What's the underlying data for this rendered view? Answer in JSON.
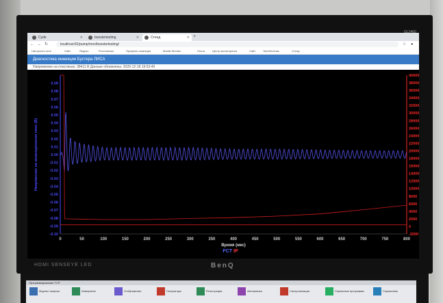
{
  "browser": {
    "tabs": [
      {
        "label": "Cyde",
        "active": false
      },
      {
        "label": "boostertesting",
        "active": false
      },
      {
        "label": "Стенд",
        "active": true
      }
    ],
    "url": "localhost:81/pump/mon/boostertesting/",
    "bookmarks": [
      "Настроить сети",
      "Сайт",
      "Яндекс",
      "Ростелеком",
      "Профиль инжекции",
      "Mobile Monitor",
      "Почта",
      "Центр мониторинга",
      "Сайт",
      "ЭлитМонтаж",
      "Стенд"
    ]
  },
  "page": {
    "title": "Диагностика инжекции Бустера ЛИСА",
    "status": "Напряжение на пластинах: 38411 В   Данные обновлены: 2020-12-18 19:53:49",
    "logo_left": "FCT",
    "logo_right": "IP"
  },
  "bezel": {
    "model": "GL2460",
    "left_brand": "HDMI  SENSEYE  LED",
    "brand": "BenQ"
  },
  "lower_app": {
    "title": "Программирование ТСР",
    "buttons": [
      "Журнал запуска",
      "Измерение",
      "Отображение",
      "Генераторы",
      "Регистрация",
      "Автоматика",
      "Синхронизация",
      "Сервисные программы",
      "Справочник"
    ],
    "side_label": "GL2460"
  },
  "colors": {
    "left_axis": "#4a4aff",
    "right_axis": "#ff2a2a",
    "signal": "#5555ee",
    "voltage": "#d01c1c",
    "header": "#3a7bc8"
  },
  "chart_data": {
    "type": "line",
    "xlabel": "Время (мкс)",
    "ylabel_left": "Напряжение на инжекционном пике (В)",
    "ylabel_right": "Напряжение на инфлекторных пластинах (В)",
    "xlim": [
      0,
      800
    ],
    "ylim_left": [
      -0.1,
      0.1
    ],
    "ylim_right": [
      -2000,
      40000
    ],
    "x_ticks": [
      0,
      50,
      100,
      150,
      200,
      250,
      300,
      350,
      400,
      450,
      500,
      550,
      600,
      650,
      700,
      750,
      800
    ],
    "left_ticks": [
      "0.09",
      "0.08",
      "0.07",
      "0.06",
      "0.05",
      "0.04",
      "0.03",
      "0.02",
      "0.01",
      "0.00",
      "-0.01",
      "-0.02",
      "-0.03",
      "-0.04",
      "-0.05",
      "-0.06",
      "-0.07",
      "-0.08",
      "-0.09",
      "-0.10"
    ],
    "right_ticks": [
      "40000",
      "38000",
      "36000",
      "34000",
      "32000",
      "30000",
      "28000",
      "26000",
      "24000",
      "22000",
      "20000",
      "18000",
      "16000",
      "14000",
      "12000",
      "10000",
      "8000",
      "6000",
      "4000",
      "2000",
      "0",
      "-2000"
    ],
    "series": [
      {
        "axis": "left",
        "x": [
          0,
          8,
          10,
          15,
          25,
          50,
          100,
          200,
          300,
          400,
          500,
          600,
          700,
          800
        ],
        "y": [
          0.0,
          0.01,
          0.08,
          0.04,
          0.02,
          0.015,
          0.01,
          0.01,
          0.01,
          0.008,
          0.008,
          0.007,
          0.006,
          0.006
        ]
      },
      {
        "axis": "right",
        "x": [
          0,
          5,
          8,
          10,
          100,
          200,
          300,
          400,
          500,
          600,
          700,
          800
        ],
        "y": [
          40000,
          40000,
          40000,
          2000,
          1800,
          1800,
          2100,
          2300,
          2700,
          3300,
          4400,
          5600
        ]
      },
      {
        "axis": "right",
        "x": [
          0,
          800
        ],
        "y": [
          400,
          400
        ]
      }
    ]
  }
}
